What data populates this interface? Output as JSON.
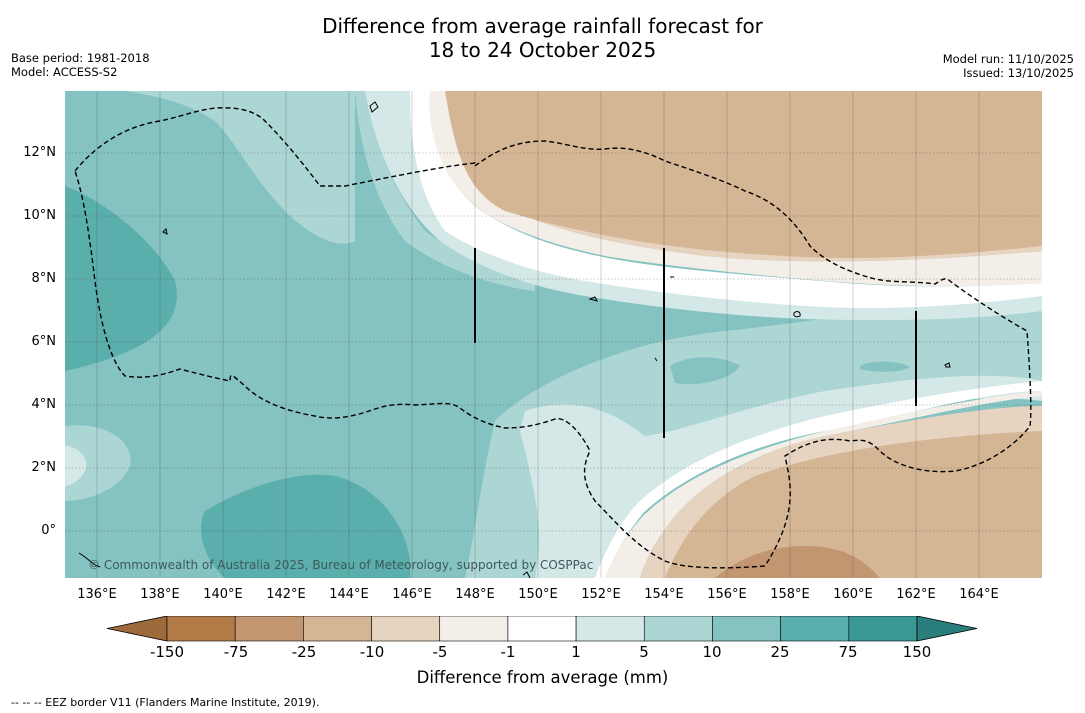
{
  "header": {
    "title_line1": "Difference from average rainfall forecast for",
    "title_line2": "18 to 24 October 2025",
    "base_period": "Base period: 1981-2018",
    "model": "Model: ACCESS-S2",
    "model_run": "Model run: 11/10/2025",
    "issued": "Issued: 13/10/2025"
  },
  "map": {
    "copyright": "© Commonwealth of Australia 2025, Bureau of Meteorology, supported by COSPPac",
    "lat_labels": [
      "12°N",
      "10°N",
      "8°N",
      "6°N",
      "4°N",
      "2°N",
      "0°"
    ],
    "lon_labels": [
      "136°E",
      "138°E",
      "140°E",
      "142°E",
      "144°E",
      "146°E",
      "148°E",
      "150°E",
      "152°E",
      "154°E",
      "156°E",
      "158°E",
      "160°E",
      "162°E",
      "164°E"
    ]
  },
  "legend": {
    "ticks": [
      "-150",
      "-75",
      "-25",
      "-10",
      "-5",
      "-1",
      "1",
      "5",
      "10",
      "25",
      "75",
      "150"
    ],
    "colors": [
      "#9e6a3c",
      "#b27b48",
      "#c29670",
      "#d4b594",
      "#e6d3c0",
      "#f4eee8",
      "#ffffff",
      "#d4e8e7",
      "#acd6d4",
      "#84c3c1",
      "#5aaeac",
      "#3a9995",
      "#2a7f7d"
    ],
    "title": "Difference from average (mm)"
  },
  "footnote": "--  --  -- EEZ border V11 (Flanders Marine Institute, 2019)."
}
